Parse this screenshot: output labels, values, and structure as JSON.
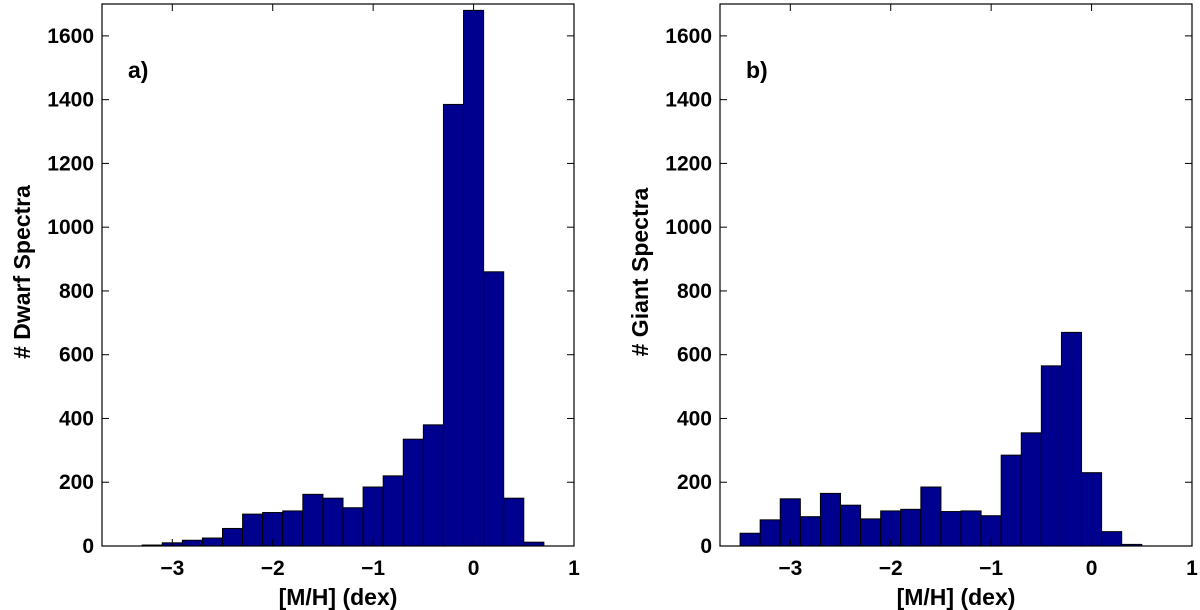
{
  "colors": {
    "bar_fill": "#00008f",
    "bar_edge": "#000000",
    "axes": "#000000"
  },
  "chart_data": [
    {
      "type": "bar",
      "panel_label": "a)",
      "xlabel": "[M/H] (dex)",
      "ylabel": "# Dwarf Spectra",
      "xlim": [
        -3.7,
        1.0
      ],
      "ylim": [
        0,
        1700
      ],
      "xticks": [
        -3,
        -2,
        -1,
        0,
        1
      ],
      "xtick_labels": [
        "−3",
        "−2",
        "−1",
        "0",
        "1"
      ],
      "yticks": [
        0,
        200,
        400,
        600,
        800,
        1000,
        1200,
        1400,
        1600
      ],
      "ytick_labels": [
        "0",
        "200",
        "400",
        "600",
        "800",
        "1000",
        "1200",
        "1400",
        "1600"
      ],
      "bin_width": 0.2,
      "bin_left_edges": [
        -3.5,
        -3.3,
        -3.1,
        -2.9,
        -2.7,
        -2.5,
        -2.3,
        -2.1,
        -1.9,
        -1.7,
        -1.5,
        -1.3,
        -1.1,
        -0.9,
        -0.7,
        -0.5,
        -0.3,
        -0.1,
        0.1,
        0.3,
        0.5,
        0.7
      ],
      "values": [
        0,
        3,
        10,
        18,
        25,
        55,
        100,
        105,
        110,
        162,
        150,
        120,
        185,
        220,
        335,
        380,
        1385,
        1680,
        860,
        150,
        12,
        0
      ],
      "grid": false,
      "legend": "none"
    },
    {
      "type": "bar",
      "panel_label": "b)",
      "xlabel": "[M/H] (dex)",
      "ylabel": "# Giant Spectra",
      "xlim": [
        -3.7,
        1.0
      ],
      "ylim": [
        0,
        1700
      ],
      "xticks": [
        -3,
        -2,
        -1,
        0,
        1
      ],
      "xtick_labels": [
        "−3",
        "−2",
        "−1",
        "0",
        "1"
      ],
      "yticks": [
        0,
        200,
        400,
        600,
        800,
        1000,
        1200,
        1400,
        1600
      ],
      "ytick_labels": [
        "0",
        "200",
        "400",
        "600",
        "800",
        "1000",
        "1200",
        "1400",
        "1600"
      ],
      "bin_width": 0.2,
      "bin_left_edges": [
        -3.5,
        -3.3,
        -3.1,
        -2.9,
        -2.7,
        -2.5,
        -2.3,
        -2.1,
        -1.9,
        -1.7,
        -1.5,
        -1.3,
        -1.1,
        -0.9,
        -0.7,
        -0.5,
        -0.3,
        -0.1,
        0.1,
        0.3,
        0.5,
        0.7
      ],
      "values": [
        40,
        82,
        148,
        92,
        165,
        128,
        85,
        110,
        115,
        185,
        108,
        110,
        95,
        285,
        355,
        565,
        670,
        230,
        45,
        5,
        0,
        0
      ],
      "grid": false,
      "legend": "none"
    }
  ]
}
